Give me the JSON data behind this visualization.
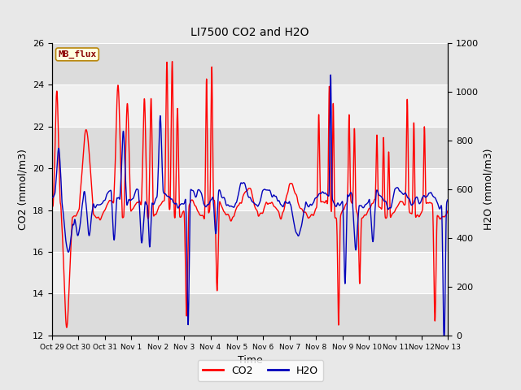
{
  "title": "LI7500 CO2 and H2O",
  "xlabel": "Time",
  "ylabel_left": "CO2 (mmol/m3)",
  "ylabel_right": "H2O (mmol/m3)",
  "ylim_left": [
    12,
    26
  ],
  "ylim_right": [
    0,
    1200
  ],
  "yticks_left": [
    12,
    14,
    16,
    18,
    20,
    22,
    24,
    26
  ],
  "yticks_right": [
    0,
    200,
    400,
    600,
    800,
    1000,
    1200
  ],
  "co2_color": "#FF0000",
  "h2o_color": "#0000BB",
  "co2_label": "CO2",
  "h2o_label": "H2O",
  "co2_lw": 1.0,
  "h2o_lw": 1.0,
  "text_box_label": "MB_flux",
  "bg_color": "#E8E8E8",
  "plot_bg_color": "#FFFFFF",
  "band_color_dark": "#DCDCDC",
  "band_color_light": "#F0F0F0",
  "figsize": [
    6.4,
    4.8
  ],
  "dpi": 100,
  "tick_labels": [
    "Oct 29",
    "Oct 30",
    "Oct 31",
    "Nov 1",
    "Nov 2",
    "Nov 3",
    "Nov 4",
    "Nov 5",
    "Nov 6",
    "Nov 7",
    "Nov 8",
    "Nov 9",
    "Nov 10",
    "Nov 11",
    "Nov 12",
    "Nov 13"
  ],
  "n_days": 15
}
